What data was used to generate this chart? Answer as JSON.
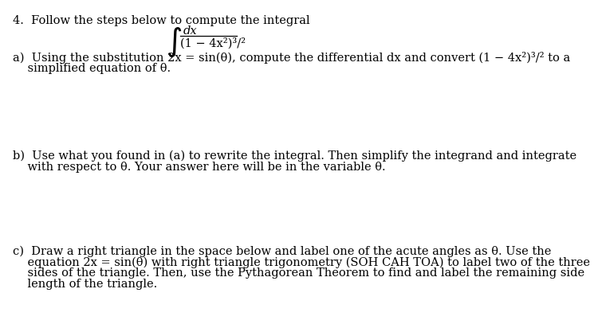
{
  "background_color": "#ffffff",
  "text_color": "#000000",
  "fontsize_main": 10.5,
  "title_line": "4.  Follow the steps below to compute the integral",
  "part_a_line1": "a)  Using the substitution 2x = sin(θ), compute the differential dx and convert (1 − 4x²)³/² to a",
  "part_a_line2": "    simplified equation of θ.",
  "part_b_line1": "b)  Use what you found in (a) to rewrite the integral. Then simplify the integrand and integrate",
  "part_b_line2": "    with respect to θ. Your answer here will be in the variable θ.",
  "part_c_line1": "c)  Draw a right triangle in the space below and label one of the acute angles as θ. Use the",
  "part_c_line2": "    equation 2x = sin(θ) with right triangle trigonometry (SOH CAH TOA) to label two of the three",
  "part_c_line3": "    sides of the triangle. Then, use the Pythagorean Theorem to find and label the remaining side",
  "part_c_line4": "    length of the triangle."
}
